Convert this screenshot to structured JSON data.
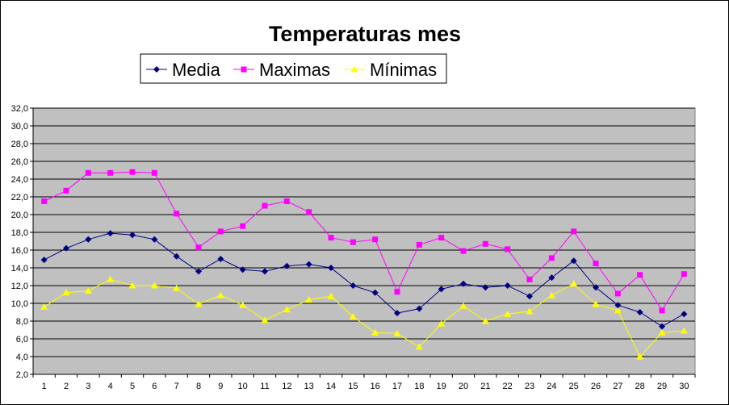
{
  "chart_data": {
    "type": "line",
    "title": "Temperaturas mes",
    "xlabel": "",
    "ylabel": "",
    "categories": [
      "1",
      "2",
      "3",
      "4",
      "5",
      "6",
      "7",
      "8",
      "9",
      "10",
      "11",
      "12",
      "13",
      "14",
      "15",
      "16",
      "17",
      "18",
      "19",
      "20",
      "21",
      "22",
      "23",
      "24",
      "25",
      "26",
      "27",
      "28",
      "29",
      "30"
    ],
    "ylim": [
      2.0,
      32.0
    ],
    "ytick_step": 2.0,
    "ytick_labels": [
      "2,0",
      "4,0",
      "6,0",
      "8,0",
      "10,0",
      "12,0",
      "14,0",
      "16,0",
      "18,0",
      "20,0",
      "22,0",
      "24,0",
      "26,0",
      "28,0",
      "30,0",
      "32,0"
    ],
    "grid": true,
    "plot_background": "#c0c0c0",
    "legend_position": "top",
    "series": [
      {
        "name": "Media",
        "color": "#000080",
        "marker": "diamond",
        "values": [
          14.9,
          16.2,
          17.2,
          17.9,
          17.7,
          17.2,
          15.3,
          13.6,
          15.0,
          13.8,
          13.6,
          14.2,
          14.4,
          14.0,
          12.0,
          11.2,
          8.9,
          9.4,
          11.6,
          12.2,
          11.8,
          12.0,
          10.8,
          12.9,
          14.8,
          11.8,
          9.8,
          9.0,
          7.4,
          8.8
        ]
      },
      {
        "name": "Maximas",
        "color": "#ff00ff",
        "marker": "square",
        "values": [
          21.5,
          22.7,
          24.7,
          24.7,
          24.8,
          24.7,
          20.1,
          16.3,
          18.1,
          18.7,
          21.0,
          21.5,
          20.3,
          17.4,
          16.9,
          17.2,
          11.3,
          16.6,
          17.4,
          15.9,
          16.7,
          16.1,
          12.7,
          15.1,
          18.1,
          14.5,
          11.1,
          13.2,
          9.2,
          13.3
        ]
      },
      {
        "name": "Mínimas",
        "color": "#ffff00",
        "marker": "triangle",
        "values": [
          9.6,
          11.2,
          11.4,
          12.7,
          12.0,
          12.0,
          11.7,
          9.9,
          10.9,
          9.8,
          8.1,
          9.3,
          10.4,
          10.8,
          8.5,
          6.7,
          6.6,
          5.1,
          7.7,
          9.7,
          8.0,
          8.8,
          9.1,
          10.9,
          12.2,
          9.9,
          9.2,
          4.0,
          6.7,
          6.9
        ]
      }
    ]
  }
}
